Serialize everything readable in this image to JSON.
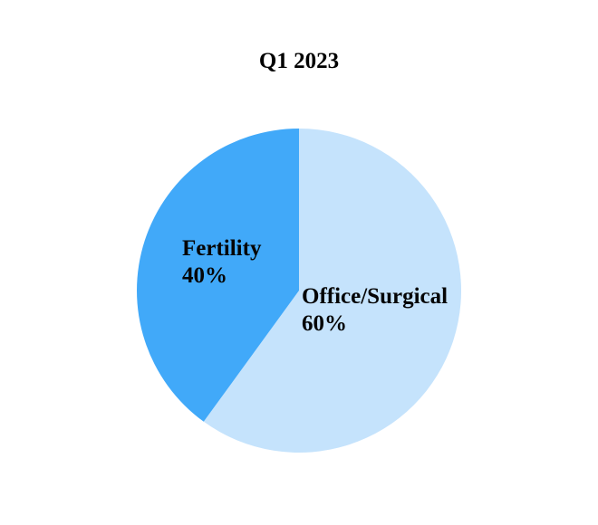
{
  "chart_data": {
    "type": "pie",
    "title": "Q1 2023",
    "start_angle_deg": 0,
    "direction": "clockwise",
    "legend": "none",
    "labels_position": "inside",
    "background_color": "#FFFFFF",
    "text_color": "#000000",
    "slices": [
      {
        "label": "Office/Surgical",
        "value": 60,
        "pct_label": "60%",
        "color": "#C5E3FC"
      },
      {
        "label": "Fertility",
        "value": 40,
        "pct_label": "40%",
        "color": "#41A9F9"
      }
    ]
  }
}
